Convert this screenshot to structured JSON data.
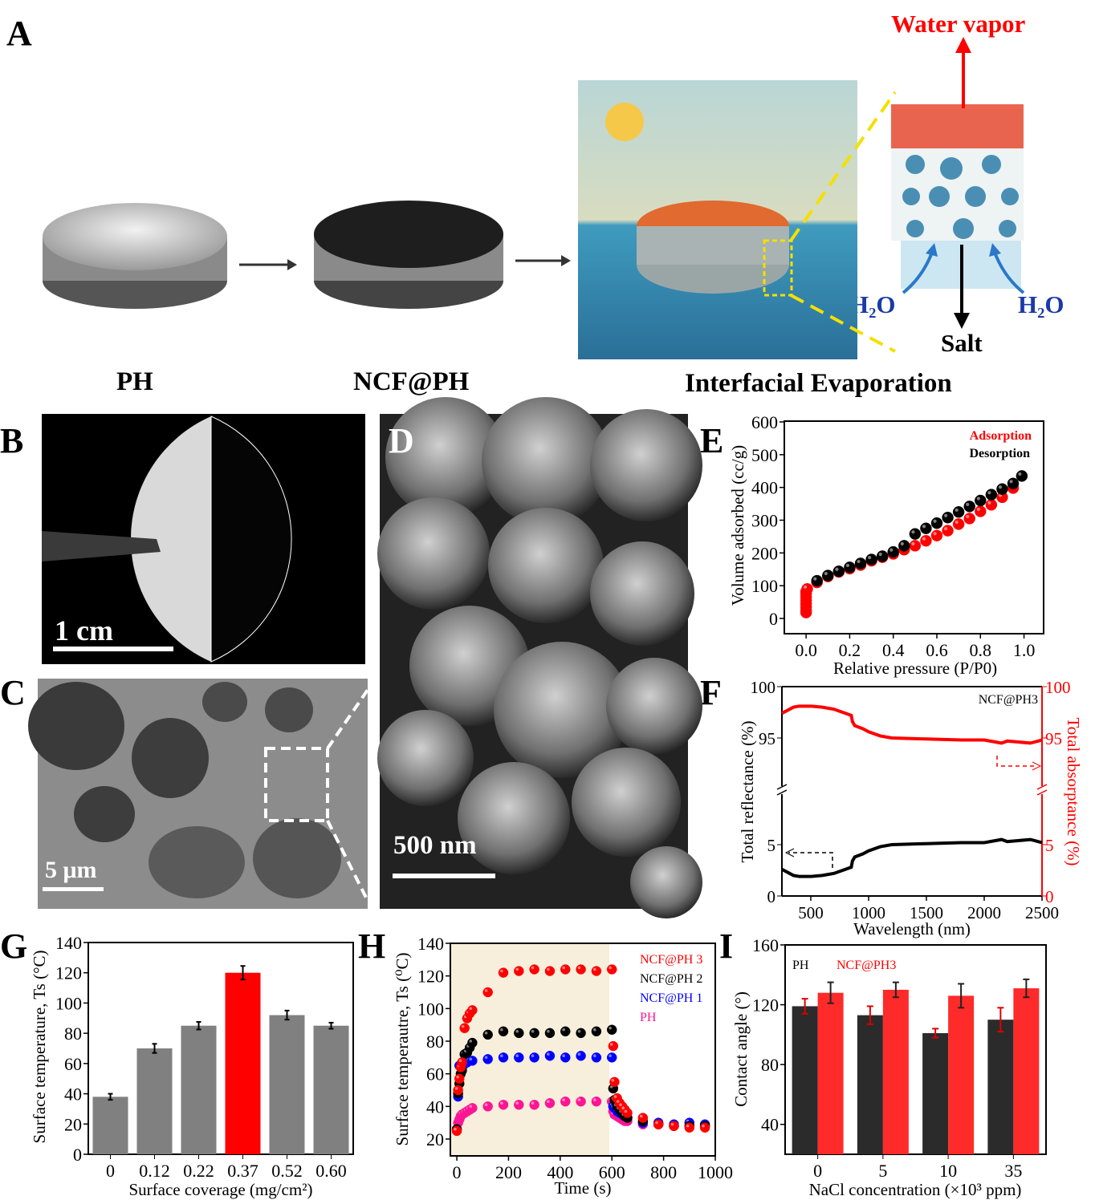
{
  "panel_labels": {
    "a": "A",
    "b": "B",
    "c": "C",
    "d": "D",
    "e": "E",
    "f": "F",
    "g": "G",
    "h": "H",
    "i": "I"
  },
  "panel_a": {
    "caption_ph": "PH",
    "caption_ncf": "NCF@PH",
    "caption_evap": "Interfacial Evaporation",
    "water_vapor": "Water vapor",
    "h2o_left": "H₂O",
    "h2o_right": "H₂O",
    "salt": "Salt"
  },
  "panel_b": {
    "scale_bar": "1 cm"
  },
  "panel_c": {
    "scale_bar": "5 μm"
  },
  "panel_d": {
    "scale_bar": "500 nm"
  },
  "colors": {
    "red": "#ff0000",
    "gray": "#808080",
    "black": "#000000",
    "blue": "#0000ff",
    "pink": "#ff1493",
    "shade": "#f7efdc"
  },
  "chart_data": [
    {
      "id": "E",
      "type": "scatter",
      "xlabel": "Relative pressure (P/P0)",
      "ylabel": "Volume adsorbed (cc/g)",
      "xlim": [
        -0.1,
        1.09
      ],
      "ylim": [
        -50,
        600
      ],
      "xticks": [
        "0.0",
        "0.2",
        "0.4",
        "0.6",
        "0.8",
        "1.0"
      ],
      "xtick_values": [
        0,
        0.2,
        0.4,
        0.6,
        0.8,
        1.0
      ],
      "yticks": [
        "0",
        "100",
        "200",
        "300",
        "400",
        "500",
        "600"
      ],
      "ytick_values": [
        0,
        100,
        200,
        300,
        400,
        500,
        600
      ],
      "legend": "top-right",
      "series": [
        {
          "name": "Adsorption",
          "color": "#ff0000",
          "x": [
            0,
            0,
            0,
            0,
            0,
            0,
            0,
            0,
            0.005,
            0.05,
            0.1,
            0.15,
            0.2,
            0.25,
            0.3,
            0.35,
            0.4,
            0.45,
            0.5,
            0.55,
            0.6,
            0.65,
            0.7,
            0.75,
            0.8,
            0.85,
            0.9,
            0.95
          ],
          "y": [
            18,
            25,
            35,
            45,
            55,
            65,
            75,
            82,
            90,
            110,
            128,
            142,
            152,
            163,
            176,
            187,
            197,
            210,
            222,
            237,
            253,
            268,
            288,
            305,
            327,
            347,
            370,
            398
          ]
        },
        {
          "name": "Desorption",
          "color": "#000000",
          "x": [
            0.05,
            0.1,
            0.15,
            0.2,
            0.25,
            0.3,
            0.35,
            0.4,
            0.45,
            0.5,
            0.55,
            0.6,
            0.65,
            0.7,
            0.75,
            0.8,
            0.85,
            0.9,
            0.95,
            0.99
          ],
          "y": [
            115,
            131,
            144,
            156,
            168,
            180,
            190,
            203,
            222,
            258,
            275,
            291,
            308,
            325,
            342,
            360,
            378,
            395,
            412,
            435
          ]
        }
      ]
    },
    {
      "id": "F",
      "type": "line",
      "annotation": "NCF@PH3",
      "xlabel": "Wavelength (nm)",
      "ylabel": "Total reflectance (%)",
      "ylabel_right": "Total absorptance (%)",
      "xlim": [
        250,
        2500
      ],
      "ylim_upper": [
        89.9,
        100
      ],
      "ylim_lower": [
        0,
        10.3
      ],
      "xticks": [
        "500",
        "1000",
        "1500",
        "2000",
        "2500"
      ],
      "xtick_values": [
        500,
        1000,
        1500,
        2000,
        2500
      ],
      "yticks_left": [
        "0",
        "5",
        "95",
        "100"
      ],
      "ytick_values_left": [
        0,
        5,
        95,
        100
      ],
      "yticks_right": [
        "0",
        "5",
        "95",
        "100"
      ],
      "series": [
        {
          "name": "Total reflectance",
          "color": "#000000",
          "x": [
            250,
            300,
            350,
            400,
            500,
            600,
            700,
            800,
            850,
            860,
            880,
            950,
            1000,
            1100,
            1200,
            1500,
            1800,
            2000,
            2150,
            2200,
            2400,
            2500
          ],
          "y": [
            2.6,
            2.3,
            2.0,
            1.9,
            1.9,
            2.0,
            2.2,
            2.6,
            2.8,
            3.4,
            3.8,
            4.1,
            4.4,
            4.8,
            5.0,
            5.1,
            5.2,
            5.2,
            5.5,
            5.3,
            5.5,
            5.2
          ]
        },
        {
          "name": "Total absorptance",
          "color": "#ff0000",
          "x": [
            250,
            300,
            350,
            400,
            500,
            600,
            700,
            800,
            850,
            860,
            880,
            950,
            1000,
            1100,
            1200,
            1500,
            1800,
            2000,
            2150,
            2200,
            2400,
            2500
          ],
          "y": [
            97.4,
            97.7,
            98.0,
            98.1,
            98.1,
            98.0,
            97.8,
            97.4,
            97.2,
            96.6,
            96.2,
            95.9,
            95.6,
            95.2,
            95.0,
            94.9,
            94.8,
            94.8,
            94.5,
            94.7,
            94.5,
            94.8
          ]
        }
      ]
    },
    {
      "id": "G",
      "type": "bar",
      "xlabel": "Surface coverage (mg/cm²)",
      "ylabel": "Surface temperature, Ts (°C)",
      "categories": [
        "0",
        "0.12",
        "0.22",
        "0.37",
        "0.52",
        "0.60"
      ],
      "values": [
        38,
        70,
        85,
        120,
        92,
        85
      ],
      "errors": [
        2,
        3,
        2.5,
        4.5,
        3,
        2
      ],
      "highlight_index": 3,
      "ylim": [
        0,
        140
      ],
      "yticks": [
        "0",
        "20",
        "40",
        "60",
        "80",
        "100",
        "120",
        "140"
      ],
      "ytick_values": [
        0,
        20,
        40,
        60,
        80,
        100,
        120,
        140
      ]
    },
    {
      "id": "H",
      "type": "scatter",
      "xlabel": "Time (s)",
      "ylabel": "Surface temperautre, Ts (⁰C)",
      "xlim": [
        -25,
        1000
      ],
      "ylim": [
        10,
        140
      ],
      "shaded_x": [
        -25,
        590
      ],
      "xticks": [
        "0",
        "200",
        "400",
        "600",
        "800",
        "1000"
      ],
      "xtick_values": [
        0,
        200,
        400,
        600,
        800,
        1000
      ],
      "yticks": [
        "20",
        "40",
        "60",
        "80",
        "100",
        "120",
        "140"
      ],
      "ytick_values": [
        20,
        40,
        60,
        80,
        100,
        120,
        140
      ],
      "legend": "top-right",
      "x": [
        0,
        5,
        10,
        15,
        20,
        30,
        40,
        50,
        60,
        120,
        180,
        240,
        300,
        360,
        420,
        480,
        540,
        600,
        605,
        610,
        620,
        630,
        640,
        650,
        660,
        720,
        780,
        840,
        900,
        960
      ],
      "series": [
        {
          "name": "NCF@PH 3",
          "color": "#ff0000",
          "values": [
            25,
            50,
            57,
            64,
            67,
            88,
            94,
            97,
            99,
            110,
            122,
            123,
            124,
            123,
            124,
            124,
            123,
            124,
            77,
            55,
            45,
            42,
            40,
            38,
            36,
            33,
            29,
            28,
            27,
            27
          ]
        },
        {
          "name": "NCF@PH 2",
          "color": "#000000",
          "values": [
            26,
            48,
            54,
            60,
            62,
            72,
            73,
            76,
            79,
            84,
            86,
            85,
            85,
            85,
            86,
            85,
            86,
            87,
            51,
            44,
            40,
            38,
            36,
            34,
            33,
            31,
            29,
            28,
            28,
            28
          ]
        },
        {
          "name": "NCF@PH 1",
          "color": "#0000ff",
          "values": [
            26,
            46,
            65,
            65,
            64,
            66,
            67,
            68,
            68,
            69,
            70,
            70,
            70,
            71,
            70,
            71,
            70,
            70,
            40,
            39,
            37,
            36,
            35,
            34,
            33,
            30,
            30,
            29,
            30,
            29
          ]
        },
        {
          "name": "PH",
          "color": "#ff1493",
          "values": [
            25,
            30,
            32,
            34,
            35,
            36,
            37,
            38,
            39,
            40,
            41,
            41,
            41,
            42,
            43,
            43,
            43,
            43,
            37,
            35,
            34,
            33,
            32,
            31,
            31,
            29,
            29,
            28,
            28,
            28
          ]
        }
      ]
    },
    {
      "id": "I",
      "type": "bar",
      "xlabel": "NaCl concentration (×10³ ppm)",
      "ylabel": "Contact angle (°)",
      "categories": [
        "0",
        "5",
        "10",
        "35"
      ],
      "ylim": [
        20,
        160
      ],
      "yticks": [
        "40",
        "80",
        "120",
        "160"
      ],
      "ytick_values": [
        40,
        80,
        120,
        160
      ],
      "legend": "top-left",
      "series": [
        {
          "name": "PH",
          "color": "#2b2b2b",
          "values": [
            119,
            113,
            101,
            110
          ],
          "errors": [
            5,
            6,
            3,
            8
          ]
        },
        {
          "name": "NCF@PH3",
          "color": "#ff2a2a",
          "values": [
            128,
            130,
            126,
            131
          ],
          "errors": [
            7,
            5,
            8,
            6
          ]
        }
      ]
    }
  ]
}
